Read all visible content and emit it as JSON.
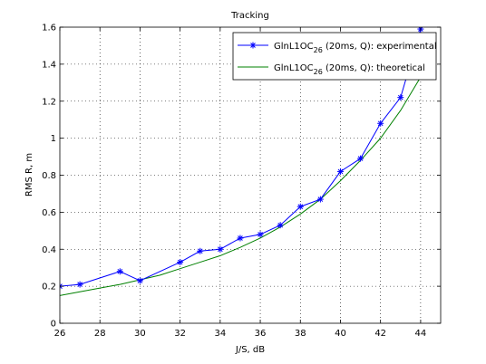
{
  "chart_data": {
    "type": "line",
    "title": "Tracking",
    "xlabel": "J/S, dB",
    "ylabel": "RMS R, m",
    "xlim": [
      26,
      45
    ],
    "ylim": [
      0,
      1.6
    ],
    "xticks": [
      26,
      28,
      30,
      32,
      34,
      36,
      38,
      40,
      42,
      44
    ],
    "yticks": [
      0,
      0.2,
      0.4,
      0.6,
      0.8,
      1,
      1.2,
      1.4,
      1.6
    ],
    "xtick_labels": [
      "26",
      "28",
      "30",
      "32",
      "34",
      "36",
      "38",
      "40",
      "42",
      "44"
    ],
    "ytick_labels": [
      "0",
      "0.2",
      "0.4",
      "0.6",
      "0.8",
      "1",
      "1.2",
      "1.4",
      "1.6"
    ],
    "grid": true,
    "legend_position": "top-right",
    "series": [
      {
        "name": "GlnL1OC",
        "name_subscript": "26",
        "name_suffix": " (20ms, Q): experimental",
        "color": "#0000ff",
        "marker": "asterisk",
        "x": [
          26,
          27,
          29,
          30,
          32,
          33,
          34,
          35,
          36,
          37,
          38,
          39,
          40,
          41,
          42,
          43,
          44
        ],
        "values": [
          0.2,
          0.21,
          0.28,
          0.23,
          0.33,
          0.39,
          0.4,
          0.46,
          0.48,
          0.53,
          0.63,
          0.67,
          0.82,
          0.89,
          1.08,
          1.22,
          1.59
        ]
      },
      {
        "name": "GlnL1OC",
        "name_subscript": "26",
        "name_suffix": " (20ms, Q): theoretical",
        "color": "#008000",
        "marker": "none",
        "x": [
          26,
          27,
          28,
          29,
          30,
          31,
          32,
          33,
          34,
          35,
          36,
          37,
          38,
          39,
          40,
          41,
          42,
          43,
          44,
          44.3
        ],
        "values": [
          0.15,
          0.17,
          0.19,
          0.21,
          0.235,
          0.26,
          0.295,
          0.33,
          0.365,
          0.41,
          0.46,
          0.52,
          0.59,
          0.67,
          0.77,
          0.88,
          1.0,
          1.15,
          1.33,
          1.4
        ]
      }
    ]
  }
}
